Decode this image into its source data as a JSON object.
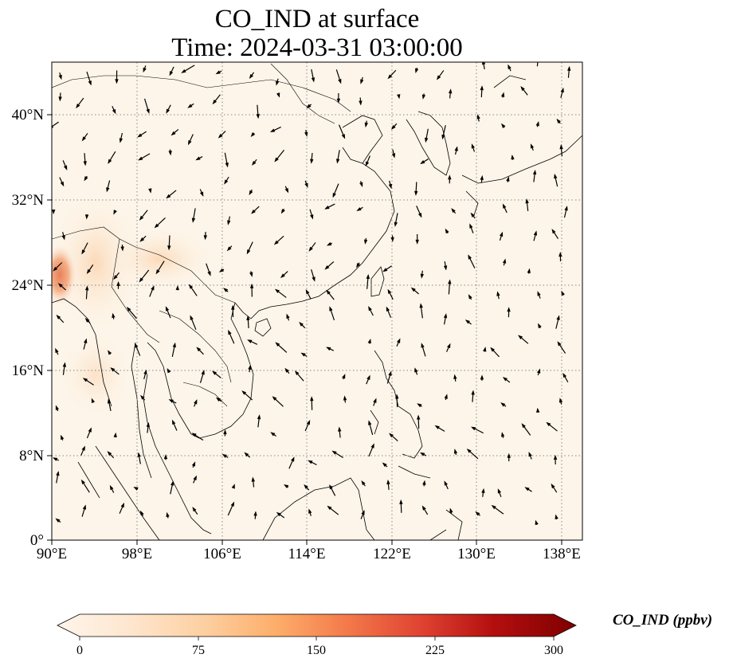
{
  "title_line1": "CO_IND at surface",
  "title_line2": "Time: 2024-03-31 03:00:00",
  "map": {
    "lon_range": [
      90,
      140
    ],
    "lat_range": [
      0,
      44
    ],
    "lon_ticks": [
      "90°E",
      "98°E",
      "106°E",
      "114°E",
      "122°E",
      "130°E",
      "138°E"
    ],
    "lat_ticks": [
      "0°",
      "8°N",
      "16°N",
      "24°N",
      "32°N",
      "40°N"
    ],
    "field_colors": {
      "background": "#fdf5e9",
      "low": "#fdebd6",
      "mid": "#fbc99a",
      "high": "#e8805a"
    }
  },
  "colorbar": {
    "label": "CO_IND (ppbv)",
    "ticks": [
      "0",
      "75",
      "150",
      "225",
      "300"
    ],
    "colors": [
      "#fff5eb",
      "#fee1c2",
      "#fdbf86",
      "#fd8c4d",
      "#ef5a2c",
      "#c9251b",
      "#a00000",
      "#7f0000"
    ]
  }
}
